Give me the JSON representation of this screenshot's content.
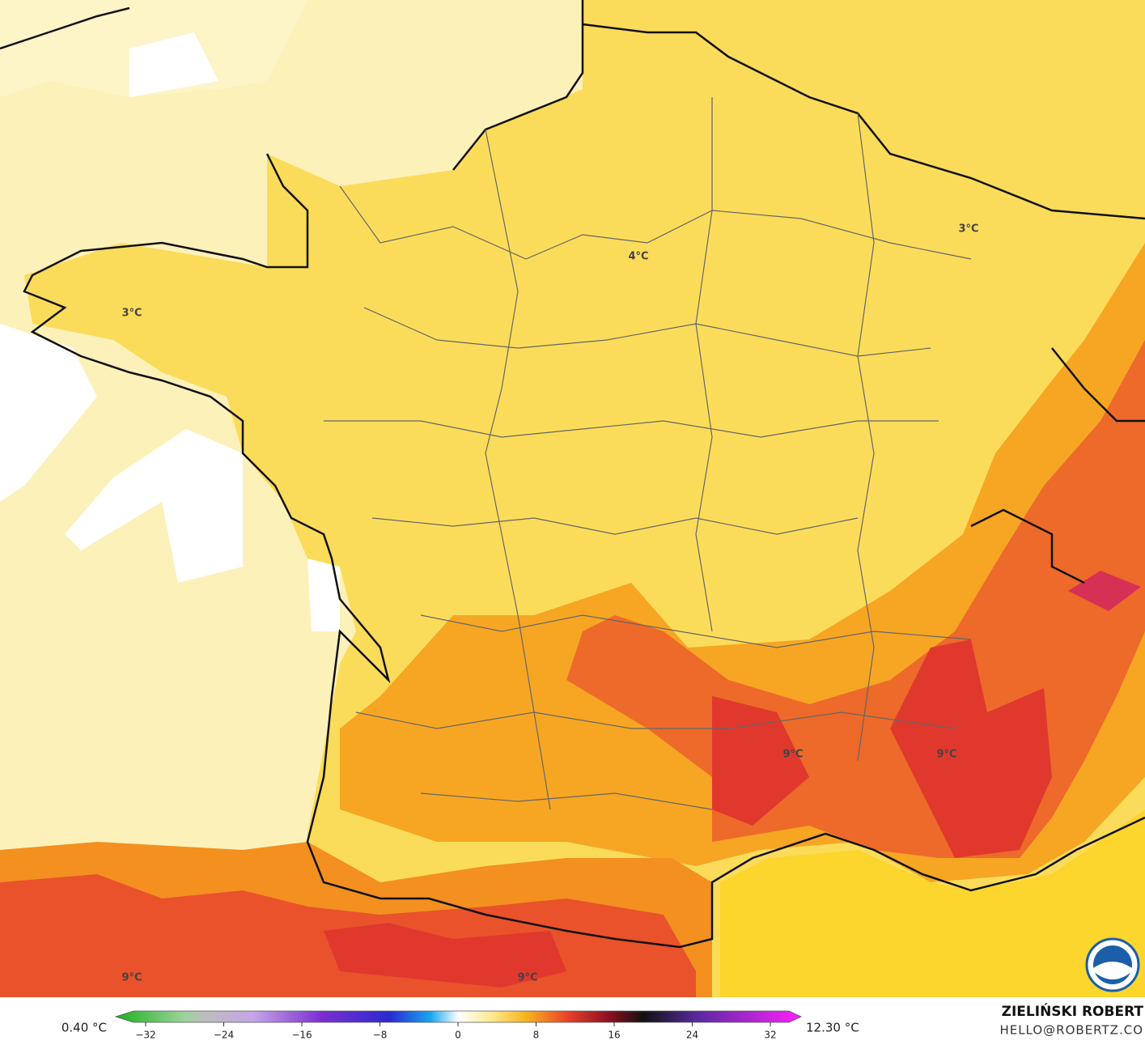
{
  "map": {
    "labels": [
      {
        "text": "3°C"
      },
      {
        "text": "4°C"
      },
      {
        "text": "3°C"
      },
      {
        "text": "9°C"
      },
      {
        "text": "9°C"
      },
      {
        "text": "9°C"
      },
      {
        "text": "9°C"
      }
    ],
    "colorbar": {
      "min_label": "0.40 °C",
      "max_label": "12.30 °C",
      "range": [
        -32,
        32
      ],
      "ticks": [
        {
          "value": -32,
          "label": "−32"
        },
        {
          "value": -24,
          "label": "−24"
        },
        {
          "value": -16,
          "label": "−16"
        },
        {
          "value": -8,
          "label": "−8"
        },
        0,
        8,
        16,
        24,
        32
      ]
    },
    "credit": {
      "author": "ZIELIŃSKI ROBERT",
      "contact": "HELLO@ROBERTZ.CO"
    }
  }
}
